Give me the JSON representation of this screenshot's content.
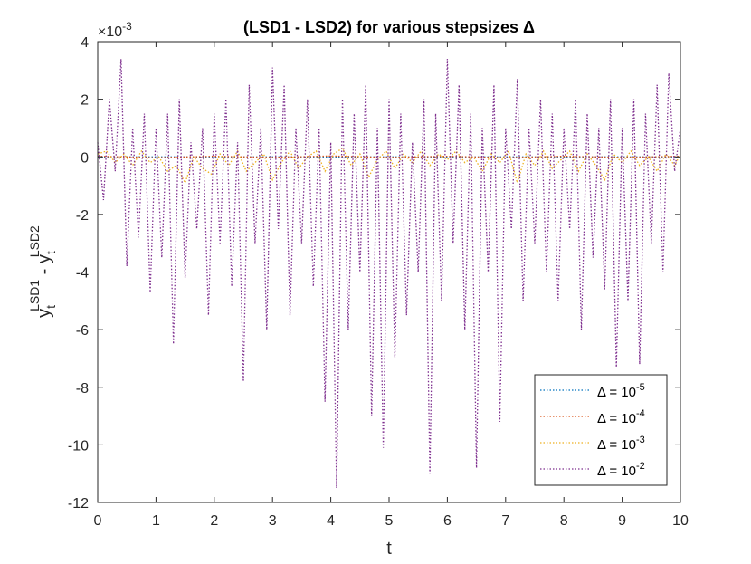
{
  "chart_data": {
    "type": "line",
    "title": "(LSD1 - LSD2) for various stepsizes Δ",
    "xlabel": "t",
    "ylabel": {
      "base1": "y",
      "sub1": "t",
      "sup1": "LSD1",
      "minus": " - y",
      "sub2": "t",
      "sup2": "LSD2"
    },
    "exponent_label": {
      "prefix": "×10",
      "exponent": "-3"
    },
    "xlim": [
      0,
      10
    ],
    "ylim": [
      -12,
      4
    ],
    "xticks": [
      "0",
      "1",
      "2",
      "3",
      "4",
      "5",
      "6",
      "7",
      "8",
      "9",
      "10"
    ],
    "yticks": [
      "4",
      "2",
      "0",
      "-2",
      "-4",
      "-6",
      "-8",
      "-10",
      "-12"
    ],
    "legend_location": "bottom-right",
    "series": [
      {
        "name": "Δ = 10^-5",
        "label_base": "Δ = 10",
        "label_exp": "-5",
        "color": "#0072BD",
        "x": [
          0,
          1,
          2,
          3,
          4,
          5,
          6,
          7,
          8,
          9,
          10
        ],
        "values": [
          0,
          0,
          0,
          0,
          0,
          0,
          0,
          0,
          0,
          0,
          0
        ]
      },
      {
        "name": "Δ = 10^-4",
        "label_base": "Δ = 10",
        "label_exp": "-4",
        "color": "#D95319",
        "x": [
          0,
          1,
          2,
          3,
          4,
          5,
          6,
          7,
          8,
          9,
          10
        ],
        "values": [
          0.02,
          -0.03,
          0.02,
          -0.02,
          0.03,
          -0.02,
          0.02,
          -0.03,
          0.02,
          -0.02,
          0.02
        ]
      },
      {
        "name": "Δ = 10^-3",
        "label_base": "Δ = 10",
        "label_exp": "-3",
        "color": "#EDB120",
        "x": [
          0,
          0.15,
          0.3,
          0.45,
          0.6,
          0.75,
          0.9,
          1.05,
          1.2,
          1.35,
          1.5,
          1.65,
          1.8,
          1.95,
          2.1,
          2.25,
          2.4,
          2.55,
          2.7,
          2.85,
          3.0,
          3.15,
          3.3,
          3.45,
          3.6,
          3.75,
          3.9,
          4.05,
          4.2,
          4.35,
          4.5,
          4.65,
          4.8,
          4.95,
          5.1,
          5.25,
          5.4,
          5.55,
          5.7,
          5.85,
          6.0,
          6.15,
          6.3,
          6.45,
          6.6,
          6.75,
          6.9,
          7.05,
          7.2,
          7.35,
          7.5,
          7.65,
          7.8,
          7.95,
          8.1,
          8.25,
          8.4,
          8.55,
          8.7,
          8.85,
          9.0,
          9.15,
          9.3,
          9.45,
          9.6,
          9.75,
          9.9,
          10.0
        ],
        "values": [
          0.1,
          0.2,
          -0.2,
          0.1,
          -0.3,
          0.2,
          -0.2,
          0.0,
          -0.5,
          -0.3,
          -0.9,
          0.0,
          -0.4,
          -0.6,
          0.1,
          -0.3,
          0.2,
          -0.5,
          -0.2,
          0.1,
          -0.8,
          -0.2,
          0.2,
          -0.4,
          0.0,
          0.2,
          -0.5,
          0.1,
          0.3,
          -0.3,
          0.1,
          -0.7,
          -0.1,
          0.2,
          -0.4,
          0.1,
          -0.2,
          0.2,
          -0.3,
          0.1,
          -0.1,
          0.2,
          -0.2,
          0.0,
          -0.5,
          0.1,
          -0.2,
          0.2,
          -0.9,
          0.1,
          -0.3,
          0.2,
          -0.4,
          -0.1,
          0.2,
          -0.5,
          0.1,
          -0.3,
          -0.8,
          0.1,
          -0.2,
          0.2,
          -0.3,
          0.0,
          -0.5,
          0.1,
          -0.3,
          0.1
        ]
      },
      {
        "name": "Δ = 10^-2",
        "label_base": "Δ = 10",
        "label_exp": "-2",
        "color": "#7E2F8E",
        "x": [
          0,
          0.1,
          0.2,
          0.3,
          0.4,
          0.5,
          0.6,
          0.7,
          0.8,
          0.9,
          1.0,
          1.1,
          1.2,
          1.3,
          1.4,
          1.5,
          1.6,
          1.7,
          1.8,
          1.9,
          2.0,
          2.1,
          2.2,
          2.3,
          2.4,
          2.5,
          2.6,
          2.7,
          2.8,
          2.9,
          3.0,
          3.1,
          3.2,
          3.3,
          3.4,
          3.5,
          3.6,
          3.7,
          3.8,
          3.9,
          4.0,
          4.1,
          4.2,
          4.3,
          4.4,
          4.5,
          4.6,
          4.7,
          4.8,
          4.9,
          5.0,
          5.1,
          5.2,
          5.3,
          5.4,
          5.5,
          5.6,
          5.7,
          5.8,
          5.9,
          6.0,
          6.1,
          6.2,
          6.3,
          6.4,
          6.5,
          6.6,
          6.7,
          6.8,
          6.9,
          7.0,
          7.1,
          7.2,
          7.3,
          7.4,
          7.5,
          7.6,
          7.7,
          7.8,
          7.9,
          8.0,
          8.1,
          8.2,
          8.3,
          8.4,
          8.5,
          8.6,
          8.7,
          8.8,
          8.9,
          9.0,
          9.1,
          9.2,
          9.3,
          9.4,
          9.5,
          9.6,
          9.7,
          9.8,
          9.9,
          10.0
        ],
        "values": [
          0.5,
          -1.5,
          2.0,
          -0.5,
          3.4,
          -3.8,
          1.0,
          -2.8,
          1.5,
          -4.7,
          1.0,
          -3.5,
          1.5,
          -6.5,
          2.0,
          -4.2,
          0.5,
          -2.5,
          1.0,
          -5.5,
          1.5,
          -3.0,
          2.0,
          -4.5,
          0.5,
          -7.8,
          2.5,
          -3.0,
          1.0,
          -6.0,
          3.1,
          -2.5,
          2.5,
          -5.5,
          1.0,
          -3.0,
          2.0,
          -4.5,
          1.0,
          -8.5,
          0.5,
          -11.5,
          2.0,
          -6.0,
          1.5,
          -4.0,
          2.5,
          -9.0,
          1.0,
          -10.1,
          2.0,
          -7.0,
          1.5,
          -5.5,
          0.5,
          -4.0,
          2.0,
          -11.0,
          1.5,
          -5.0,
          3.4,
          -3.0,
          2.5,
          -6.0,
          1.5,
          -10.8,
          1.0,
          -4.0,
          2.5,
          -9.2,
          1.0,
          -2.5,
          2.7,
          -5.0,
          1.0,
          -3.0,
          2.0,
          -4.0,
          1.5,
          -5.0,
          1.0,
          -2.5,
          2.0,
          -6.0,
          1.5,
          -3.5,
          1.0,
          -4.6,
          2.0,
          -7.3,
          1.0,
          -5.0,
          2.0,
          -7.2,
          1.5,
          -3.0,
          2.5,
          -4.0,
          2.9,
          -0.5,
          1.0
        ]
      }
    ]
  }
}
